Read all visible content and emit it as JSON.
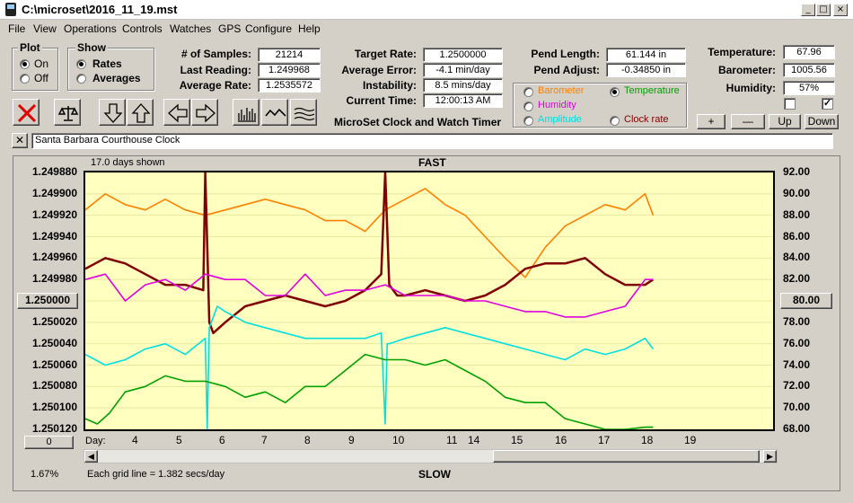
{
  "window": {
    "title": "C:\\microset\\2016_11_19.mst",
    "controls": [
      "_",
      "□",
      "×"
    ]
  },
  "menu": [
    "File",
    "View",
    "Operations",
    "Controls",
    "Watches",
    "GPS",
    "Configure",
    "Help"
  ],
  "plot_group": {
    "title": "Plot",
    "options": [
      "On",
      "Off"
    ],
    "selected": "On"
  },
  "show_group": {
    "title": "Show",
    "options": [
      "Rates",
      "Averages"
    ],
    "selected": "Rates"
  },
  "stats": [
    {
      "label": "# of Samples:",
      "value": "21214"
    },
    {
      "label": "Last Reading:",
      "value": "1.249968"
    },
    {
      "label": "Average Rate:",
      "value": "1.2535572"
    }
  ],
  "rates": [
    {
      "label": "Target Rate:",
      "value": "1.2500000"
    },
    {
      "label": "Average Error:",
      "value": "-4.1 min/day"
    },
    {
      "label": "Instability:",
      "value": "8.5 mins/day"
    },
    {
      "label": "Current Time:",
      "value": "12:00:13 AM"
    }
  ],
  "pend": [
    {
      "label": "Pend Length:",
      "value": "61.144 in"
    },
    {
      "label": "Pend Adjust:",
      "value": "-0.34850 in"
    }
  ],
  "env": [
    {
      "label": "Temperature:",
      "value": "67.96"
    },
    {
      "label": "Barometer:",
      "value": "1005.56"
    },
    {
      "label": "Humidity:",
      "value": "57%"
    }
  ],
  "app_title": "MicroSet Clock and Watch Timer",
  "channels": [
    {
      "name": "Barometer",
      "color": "#ff8000",
      "selected": false
    },
    {
      "name": "Temperature",
      "color": "#00a000",
      "selected": true
    },
    {
      "name": "Humidity",
      "color": "#e000e0",
      "selected": false
    },
    {
      "name": "Clock rate",
      "color": "#800000",
      "selected": false
    },
    {
      "name": "Amplitude",
      "color": "#00e0e0",
      "selected": false
    }
  ],
  "env_buttons": [
    "+",
    "—",
    "Up",
    "Down"
  ],
  "checkboxes": [
    false,
    true
  ],
  "watch_name": "Santa Barbara Courthouse Clock",
  "chart_data": {
    "type": "line",
    "top_label": "FAST",
    "bottom_label": "SLOW",
    "days_shown": "17.0 days shown",
    "grid_note": "Each grid line = 1.382 secs/day",
    "percent": "1.67%",
    "day_label": "Day:",
    "left_axis_ticks": [
      "1.249880",
      "1.249900",
      "1.249920",
      "1.249940",
      "1.249960",
      "1.249980",
      "1.250000",
      "1.250020",
      "1.250040",
      "1.250060",
      "1.250080",
      "1.250100",
      "1.250120"
    ],
    "left_axis_button": "1.250000",
    "right_axis_ticks": [
      "92.00",
      "90.00",
      "88.00",
      "86.00",
      "84.00",
      "82.00",
      "80.00",
      "78.00",
      "76.00",
      "74.00",
      "72.00",
      "70.00",
      "68.00"
    ],
    "right_axis_button": "80.00",
    "left_range": [
      1.24988,
      1.25012
    ],
    "right_range": [
      68,
      92
    ],
    "x_range": [
      3,
      20.2
    ],
    "x_ticks": [
      {
        "label": "4",
        "day": 4
      },
      {
        "label": "5",
        "day": 5
      },
      {
        "label": "6",
        "day": 6
      },
      {
        "label": "7",
        "day": 7
      },
      {
        "label": "8",
        "day": 8
      },
      {
        "label": "9",
        "day": 9
      },
      {
        "label": "10",
        "day": 10
      },
      {
        "label": "11",
        "day": 11
      },
      {
        "label": "14",
        "day": 11.5
      },
      {
        "label": "15",
        "day": 13
      },
      {
        "label": "16",
        "day": 14
      },
      {
        "label": "17",
        "day": 15
      },
      {
        "label": "18",
        "day": 16
      },
      {
        "label": "19",
        "day": 17
      }
    ],
    "series": [
      {
        "name": "Barometer",
        "axis": "right",
        "color": "#ff8000",
        "x": [
          3,
          3.5,
          4,
          4.5,
          5,
          5.5,
          6,
          6.5,
          7,
          7.5,
          8,
          8.5,
          9,
          9.5,
          10,
          10.5,
          11,
          11.5,
          12,
          12.5,
          13,
          13.5,
          14,
          14.5,
          15,
          15.5,
          16,
          16.5,
          17,
          17.2
        ],
        "y": [
          88.5,
          90,
          89,
          88.5,
          89.5,
          88.5,
          88,
          88.5,
          89,
          89.5,
          89,
          88.5,
          87.5,
          87.5,
          86.5,
          88.5,
          89.5,
          90.5,
          89,
          88,
          86,
          84,
          82.2,
          85,
          87,
          88,
          89,
          88.5,
          90,
          88
        ]
      },
      {
        "name": "Clock rate",
        "axis": "left",
        "color": "#800000",
        "x": [
          3,
          3.5,
          4,
          4.5,
          5,
          5.5,
          5.95,
          6.0,
          6.1,
          6.2,
          6.5,
          7,
          7.5,
          8,
          8.5,
          9,
          9.5,
          10,
          10.4,
          10.5,
          10.6,
          10.8,
          11,
          11.5,
          12,
          12.5,
          13,
          13.5,
          14,
          14.5,
          15,
          15.5,
          16,
          16.5,
          17,
          17.2
        ],
        "y": [
          1.24997,
          1.24996,
          1.249965,
          1.249975,
          1.249985,
          1.249985,
          1.24999,
          1.24988,
          1.25002,
          1.25003,
          1.25002,
          1.250005,
          1.25,
          1.249995,
          1.25,
          1.250005,
          1.25,
          1.24999,
          1.249975,
          1.24988,
          1.249985,
          1.249995,
          1.249995,
          1.24999,
          1.249995,
          1.25,
          1.249995,
          1.249985,
          1.24997,
          1.249965,
          1.249965,
          1.24996,
          1.249975,
          1.249985,
          1.249985,
          1.24998
        ]
      },
      {
        "name": "Humidity",
        "axis": "right",
        "color": "#e000e0",
        "x": [
          3,
          3.5,
          4,
          4.5,
          5,
          5.5,
          6,
          6.5,
          7,
          7.5,
          8,
          8.5,
          9,
          9.5,
          10,
          10.5,
          11,
          11.5,
          12,
          12.5,
          13,
          13.5,
          14,
          14.5,
          15,
          15.5,
          16,
          16.5,
          17,
          17.2
        ],
        "y": [
          82,
          82.5,
          80,
          81.5,
          82,
          81,
          82.5,
          82,
          82,
          80.5,
          80.5,
          82.5,
          80.5,
          81,
          81,
          81.5,
          80.5,
          80.5,
          80.5,
          80,
          80,
          79.5,
          79,
          79,
          78.5,
          78.5,
          79,
          79.5,
          82,
          82
        ]
      },
      {
        "name": "Amplitude",
        "axis": "right",
        "color": "#00e0e0",
        "x": [
          3,
          3.5,
          4,
          4.5,
          5,
          5.5,
          6.0,
          6.05,
          6.1,
          6.3,
          6.5,
          7,
          7.5,
          8,
          8.5,
          9,
          9.5,
          10,
          10.4,
          10.5,
          10.55,
          10.6,
          11,
          11.5,
          12,
          12.5,
          13,
          13.5,
          14,
          14.5,
          15,
          15.5,
          16,
          16.5,
          17,
          17.2
        ],
        "y": [
          75,
          74,
          74.5,
          75.5,
          76,
          75,
          76.5,
          68,
          77.5,
          79.5,
          79,
          78,
          77.5,
          77,
          76.5,
          76.5,
          76.5,
          76.5,
          77,
          68.5,
          76,
          76,
          76.5,
          77,
          77.5,
          77,
          76.5,
          76,
          75.5,
          75,
          74.5,
          75.5,
          75,
          75.5,
          76.5,
          75.5
        ]
      },
      {
        "name": "Temperature",
        "axis": "right",
        "color": "#00a000",
        "x": [
          3,
          3.3,
          3.6,
          4,
          4.5,
          5,
          5.5,
          6,
          6.5,
          7,
          7.5,
          8,
          8.5,
          9,
          9.5,
          10,
          10.5,
          11,
          11.5,
          12,
          12.5,
          13,
          13.5,
          14,
          14.5,
          15,
          15.5,
          16,
          16.5,
          17,
          17.2
        ],
        "y": [
          69,
          68.5,
          69.5,
          71.5,
          72,
          73,
          72.5,
          72.5,
          72,
          71,
          71.5,
          70.5,
          72,
          72,
          73.5,
          75,
          74.5,
          74.5,
          74,
          74.5,
          73.5,
          72.5,
          71,
          70.5,
          70.5,
          69,
          68.5,
          68,
          68,
          68.2,
          68.2
        ]
      }
    ]
  }
}
